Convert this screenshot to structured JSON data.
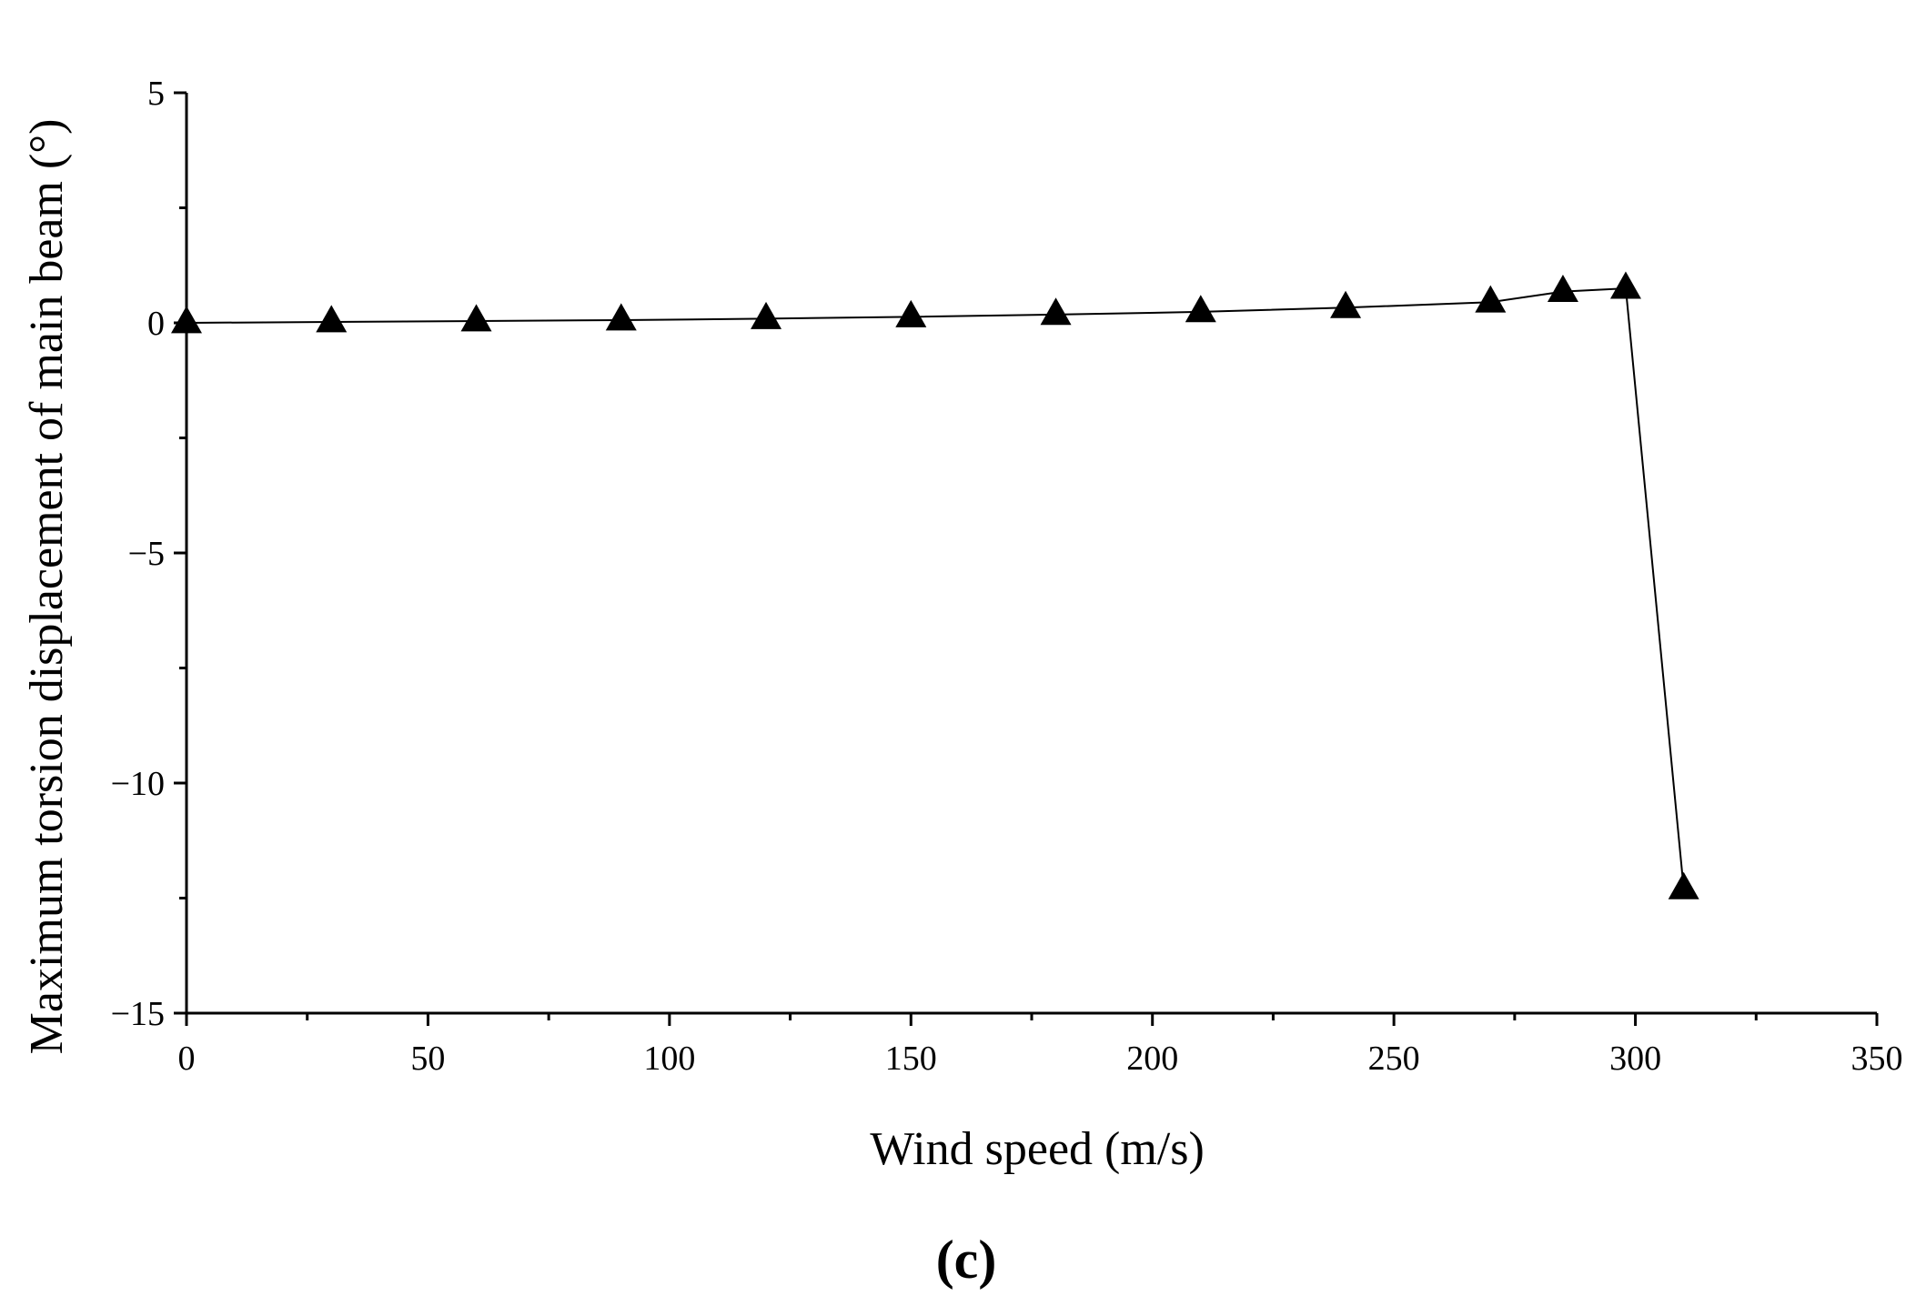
{
  "chart_data": {
    "type": "line",
    "title": "",
    "xlabel": "Wind speed (m/s)",
    "ylabel": "Maximum torsion displacement of main beam (°)",
    "panel_label": "(c)",
    "xlim": [
      0,
      350
    ],
    "ylim": [
      -15,
      5
    ],
    "x_ticks": [
      0,
      50,
      100,
      150,
      200,
      250,
      300,
      350
    ],
    "x_minor_ticks": [
      25,
      75,
      125,
      175,
      225,
      275,
      325
    ],
    "y_ticks": [
      -15,
      -10,
      -5,
      0,
      5
    ],
    "y_tick_labels": [
      "−15",
      "−10",
      "−5",
      "0",
      "5"
    ],
    "y_minor_ticks": [
      -12.5,
      -7.5,
      -2.5,
      2.5
    ],
    "grid": false,
    "legend": "none",
    "marker": "triangle",
    "series": [
      {
        "x": [
          0,
          30,
          60,
          90,
          120,
          150,
          180,
          210,
          240,
          270,
          285,
          298,
          310
        ],
        "values": [
          0,
          0.02,
          0.04,
          0.06,
          0.09,
          0.13,
          0.18,
          0.24,
          0.33,
          0.45,
          0.68,
          0.75,
          -12.3
        ]
      }
    ],
    "colors": {
      "line": "#000000",
      "marker": "#000000"
    }
  }
}
